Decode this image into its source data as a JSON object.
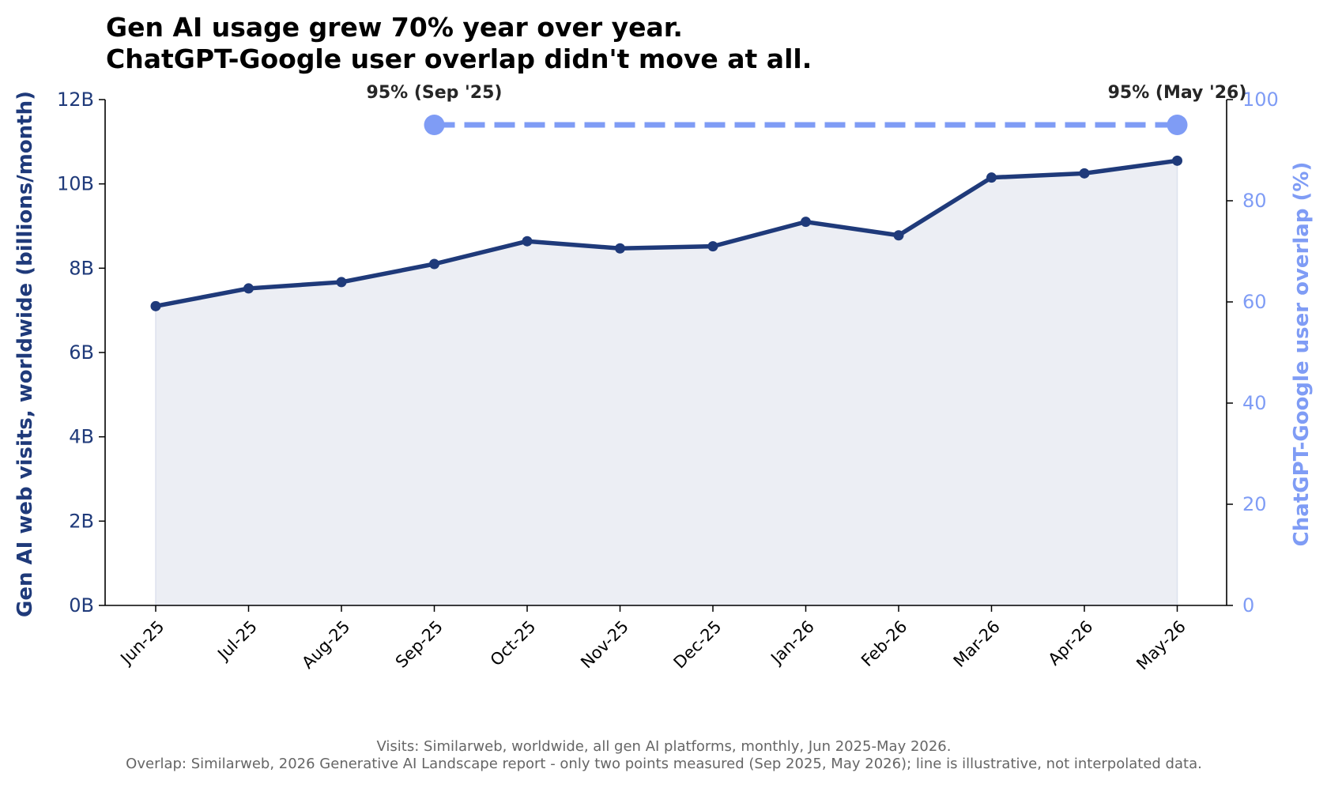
{
  "chart_data": {
    "type": "line",
    "title_lines": [
      "Gen AI usage grew 70% year over year.",
      "ChatGPT-Google user overlap didn't move at all."
    ],
    "categories": [
      "Jun-25",
      "Jul-25",
      "Aug-25",
      "Sep-25",
      "Oct-25",
      "Nov-25",
      "Dec-25",
      "Jan-26",
      "Feb-26",
      "Mar-26",
      "Apr-26",
      "May-26"
    ],
    "left_axis": {
      "label": "Gen AI web visits, worldwide (billions/month)",
      "ylim": [
        0,
        12
      ],
      "ticks": [
        0,
        2,
        4,
        6,
        8,
        10,
        12
      ],
      "tick_labels": [
        "0B",
        "2B",
        "4B",
        "6B",
        "8B",
        "10B",
        "12B"
      ],
      "color": "#1f3a7a"
    },
    "right_axis": {
      "label": "ChatGPT-Google user overlap (%)",
      "ylim": [
        0,
        100
      ],
      "ticks": [
        0,
        20,
        40,
        60,
        80,
        100
      ],
      "tick_labels": [
        "0",
        "20",
        "40",
        "60",
        "80",
        "100"
      ],
      "color": "#7f9cf5"
    },
    "series": [
      {
        "axis": "left",
        "style": "solid line with markers, area fill",
        "color": "#1f3a7a",
        "fill_color": "#eceef4",
        "values": [
          7.1,
          7.52,
          7.67,
          8.1,
          8.64,
          8.47,
          8.52,
          9.1,
          8.78,
          10.15,
          10.25,
          10.55
        ]
      },
      {
        "axis": "right",
        "style": "dashed line with large end markers",
        "color": "#7f9cf5",
        "points": [
          {
            "x": "Sep-25",
            "y": 95
          },
          {
            "x": "May-26",
            "y": 95
          }
        ]
      }
    ],
    "annotations": [
      {
        "text": "95% (Sep '25)",
        "x": "Sep-25",
        "y": 95
      },
      {
        "text": "95% (May '26)",
        "x": "May-26",
        "y": 95
      }
    ],
    "grid": false,
    "footnote_lines": [
      "Visits: Similarweb, worldwide, all gen AI platforms, monthly, Jun 2025-May 2026.",
      "Overlap: Similarweb, 2026 Generative AI Landscape report - only two points measured (Sep 2025, May 2026); line is illustrative, not interpolated data."
    ]
  }
}
